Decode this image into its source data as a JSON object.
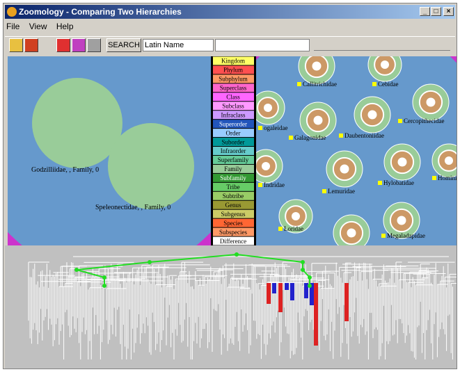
{
  "window": {
    "title": "Zoomology - Comparing Two Hierarchies"
  },
  "menu": [
    "File",
    "View",
    "Help"
  ],
  "toolbar": {
    "search_button": "SEARCH",
    "field_select": "Latin Name"
  },
  "left_panel": {
    "labels": [
      "Godzilliidae, , Family, 0",
      "Speleonectidae, , Family, 0"
    ]
  },
  "legend": {
    "ranks": [
      "Kingdom",
      "Phylum",
      "Subphylum",
      "Superclass",
      "Class",
      "Subclass",
      "Infraclass",
      "Superorder",
      "Order",
      "Suborder",
      "Infraorder",
      "Superfamily",
      "Family",
      "Subfamily",
      "Tribe",
      "Subtribe",
      "Genus",
      "Subgenus",
      "Species",
      "Subspecies",
      "Difference"
    ]
  },
  "right_panel": {
    "labels": [
      "Callitrichidae",
      "Cebidae",
      "ogaleidae",
      "Cercopithecidae",
      "Galagonidae",
      "Daubentoniidae",
      "Indridae",
      "Lemuridae",
      "Hylobatidae",
      "Homini",
      "Loridae",
      "Megaladapidae"
    ]
  }
}
